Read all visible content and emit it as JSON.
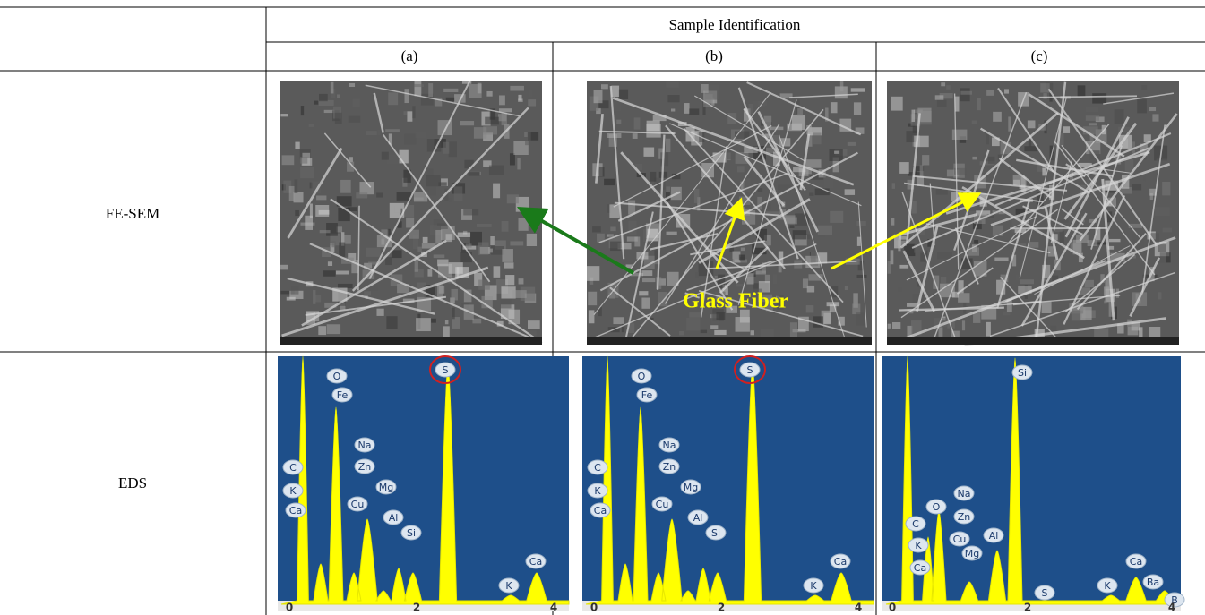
{
  "header": {
    "group": "Sample Identification",
    "columns": [
      "(a)",
      "(b)",
      "(c)"
    ]
  },
  "rows": [
    {
      "label": "FE-SEM",
      "annotation": "Glass Fiber"
    },
    {
      "label": "EDS",
      "spectra": [
        {
          "labels": [
            "O",
            "Fe",
            "S",
            "Na",
            "Zn",
            "C",
            "Mg",
            "K",
            "Cu",
            "Ca",
            "Al",
            "Si",
            "K",
            "Ca"
          ],
          "axis": [
            "0",
            "2",
            "4"
          ]
        },
        {
          "labels": [
            "O",
            "Fe",
            "S",
            "Na",
            "Zn",
            "C",
            "Mg",
            "K",
            "Cu",
            "Ca",
            "Al",
            "Si",
            "K",
            "Ca"
          ],
          "axis": [
            "0",
            "2",
            "4"
          ]
        },
        {
          "labels": [
            "Si",
            "Na",
            "O",
            "Zn",
            "C",
            "Cu",
            "Al",
            "K",
            "Mg",
            "Ca",
            "S",
            "K",
            "Ca",
            "Ba",
            "B"
          ],
          "axis": [
            "0",
            "2",
            "4"
          ]
        }
      ]
    }
  ]
}
